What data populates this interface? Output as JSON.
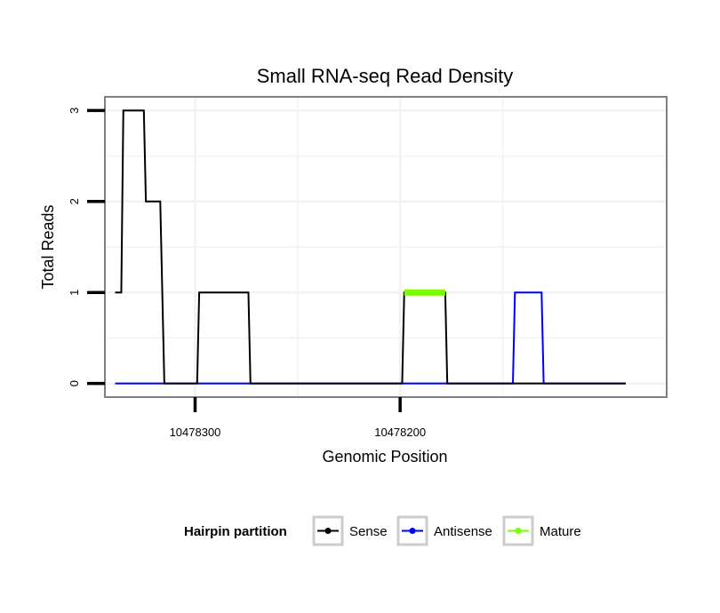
{
  "chart_data": {
    "type": "line",
    "title": "Small RNA-seq Read Density",
    "xlabel": "Genomic Position",
    "ylabel": "Total Reads",
    "x_reversed": true,
    "xlim": [
      10478344,
      10478070
    ],
    "ylim": [
      -0.15,
      3.15
    ],
    "xticks": [
      10478300,
      10478200
    ],
    "xtick_labels": [
      "10478300",
      "10478200"
    ],
    "yticks": [
      0,
      1,
      2,
      3
    ],
    "ytick_labels": [
      "0",
      "1",
      "2",
      "3"
    ],
    "grid": true,
    "legend": {
      "title": "Hairpin partition",
      "position": "bottom",
      "entries": [
        "Sense",
        "Antisense",
        "Mature"
      ]
    },
    "series": [
      {
        "name": "Sense",
        "color": "#000000",
        "points": [
          [
            10478339,
            1
          ],
          [
            10478336,
            1
          ],
          [
            10478335,
            3
          ],
          [
            10478325,
            3
          ],
          [
            10478324,
            2
          ],
          [
            10478317,
            2
          ],
          [
            10478315,
            0
          ],
          [
            10478299,
            0
          ],
          [
            10478298,
            1
          ],
          [
            10478274,
            1
          ],
          [
            10478273,
            0
          ],
          [
            10478199,
            0
          ],
          [
            10478198,
            1
          ],
          [
            10478178,
            1
          ],
          [
            10478177,
            0
          ],
          [
            10478090,
            0
          ]
        ]
      },
      {
        "name": "Antisense",
        "color": "#0000ff",
        "points": [
          [
            10478339,
            0
          ],
          [
            10478145,
            0
          ],
          [
            10478144,
            1
          ],
          [
            10478131,
            1
          ],
          [
            10478130,
            0
          ],
          [
            10478090,
            0
          ]
        ]
      },
      {
        "name": "Mature",
        "color": "#7cfc00",
        "points": [
          [
            10478198,
            1
          ],
          [
            10478178,
            1
          ]
        ]
      }
    ]
  }
}
